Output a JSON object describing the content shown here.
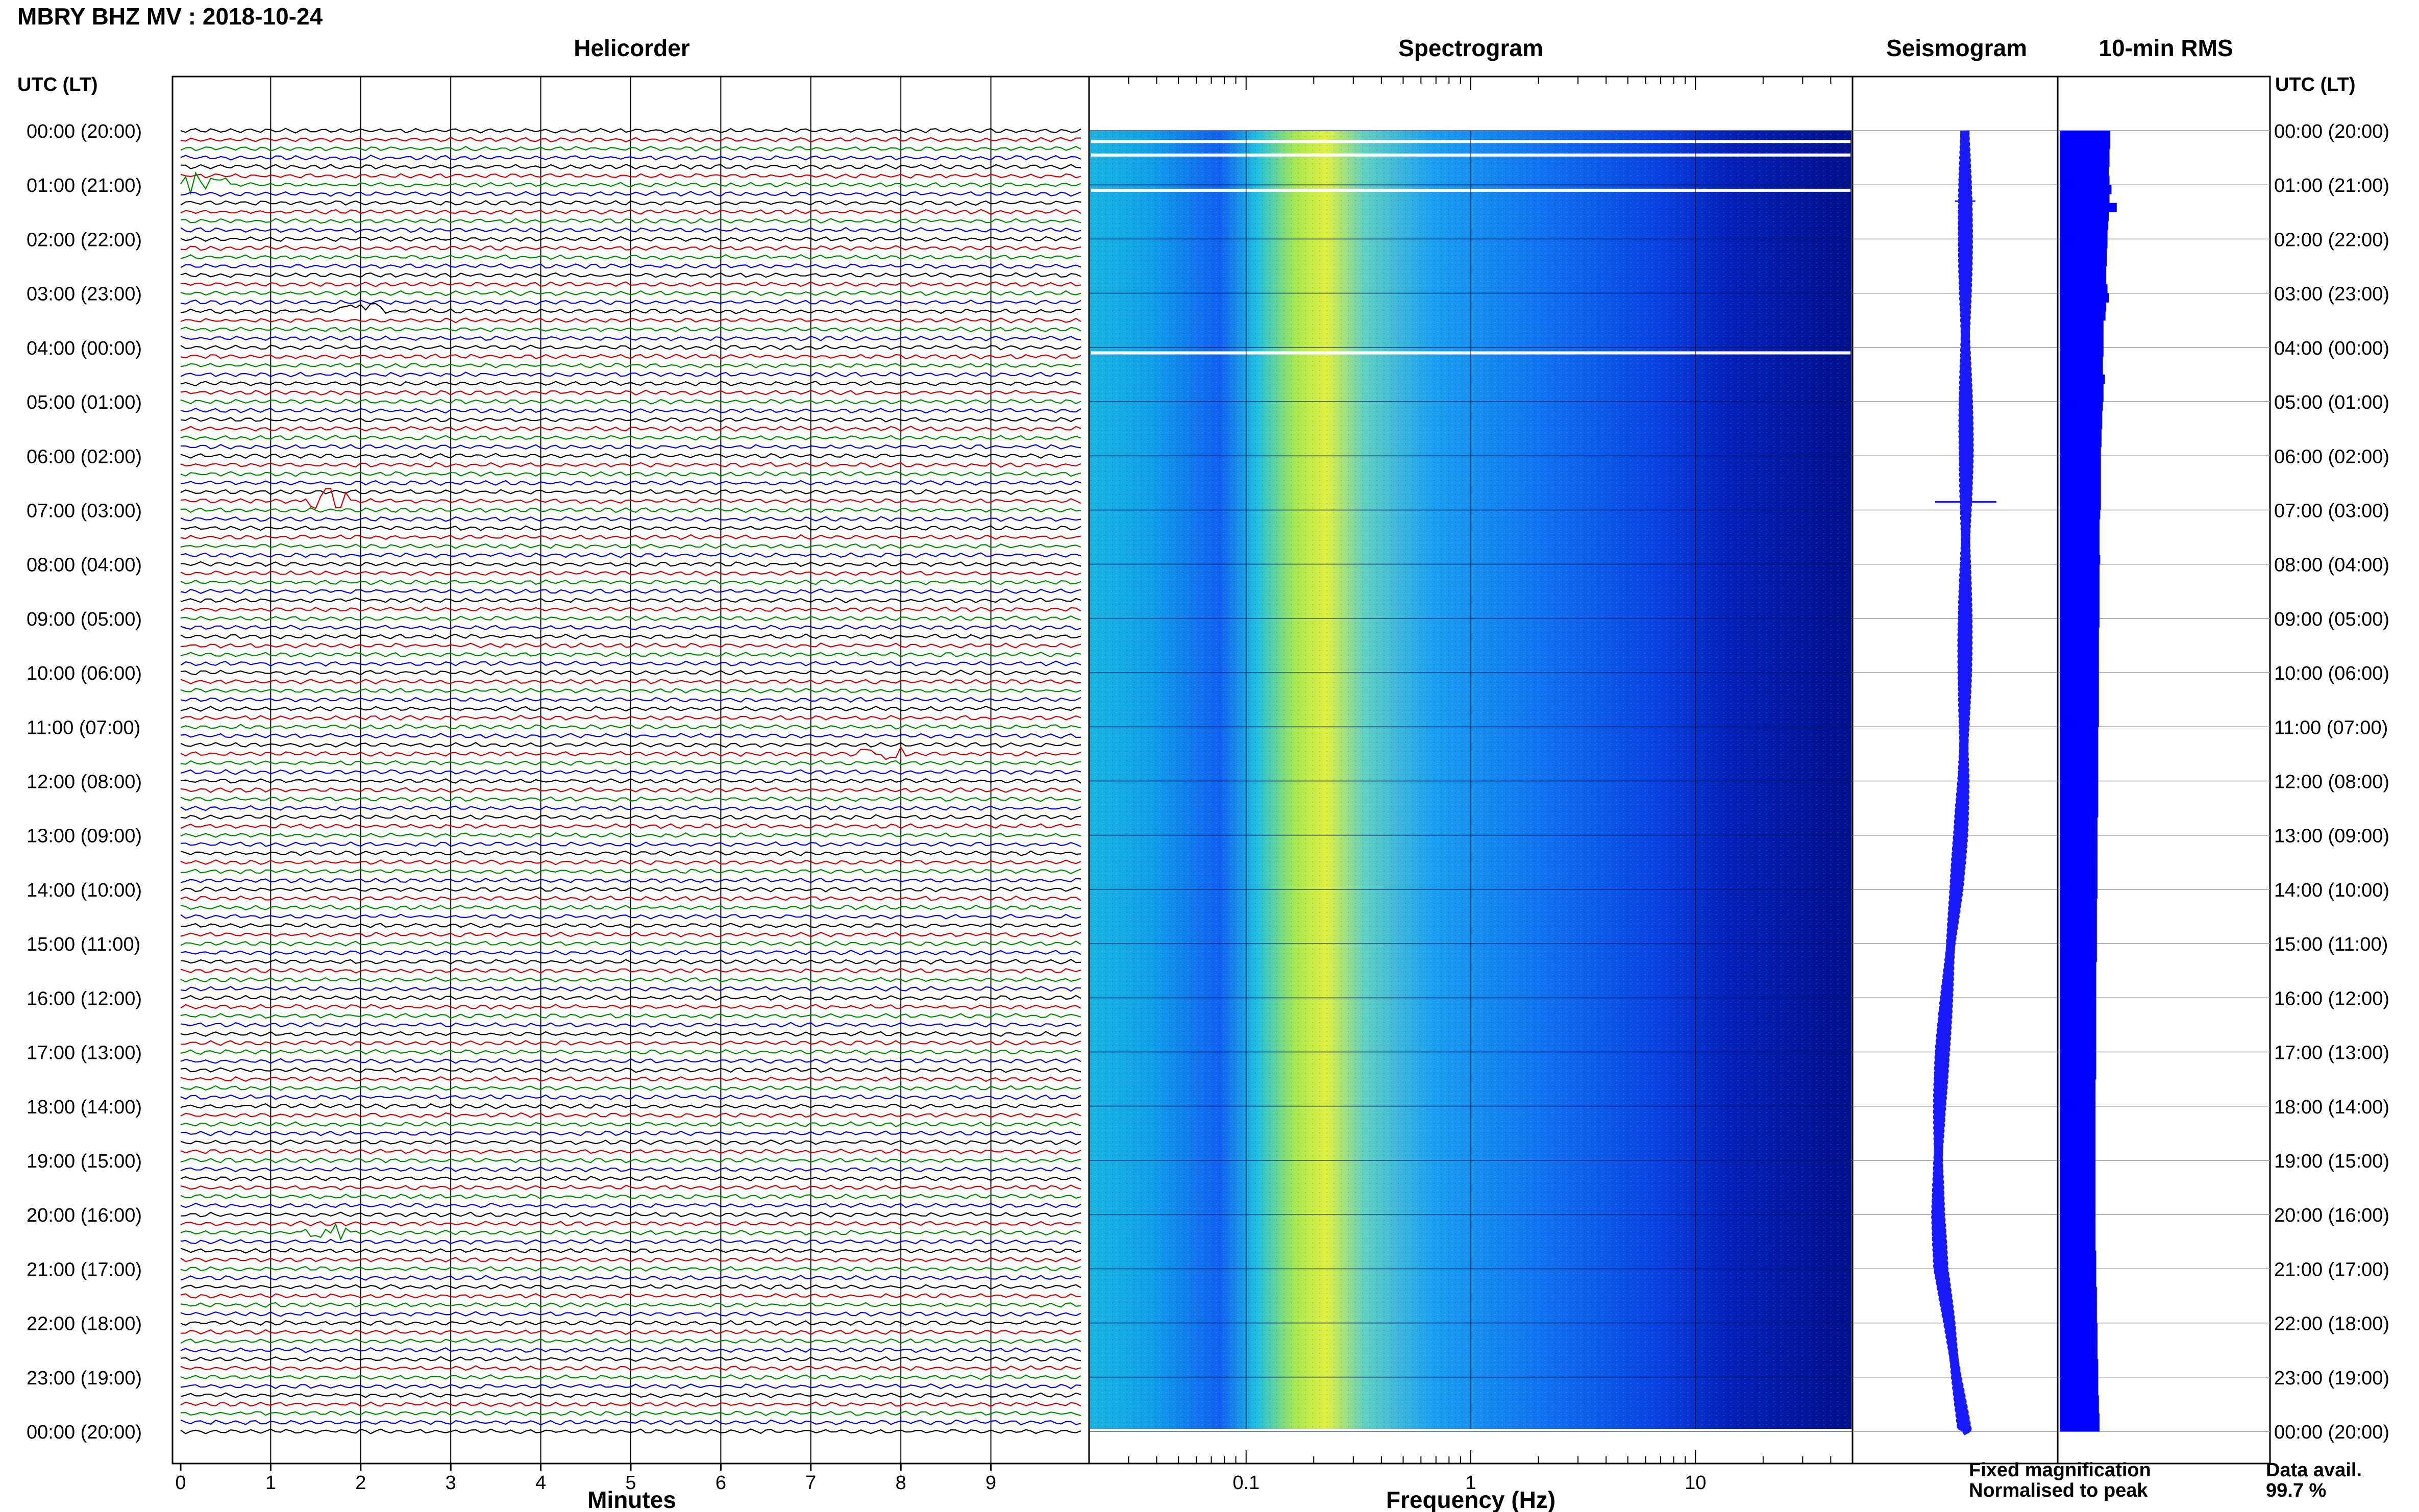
{
  "header": {
    "title": "MBRY BHZ MV : 2018-10-24"
  },
  "row_header": {
    "left": "UTC (LT)",
    "right": "UTC (LT)"
  },
  "panels": {
    "helicorder": "Helicorder",
    "spectrogram": "Spectrogram",
    "seismogram": "Seismogram",
    "rms": "10-min RMS"
  },
  "footer": {
    "fixed_magnification": "Fixed magnification",
    "normalised_to_peak": "Normalised to peak",
    "data_avail_label": "Data avail.",
    "data_avail_value": "99.7 %"
  },
  "colors": {
    "fixed_magnification": "#1a1aff",
    "normalised_to_peak": "#ff1a1a",
    "trace_colors": [
      "#000000",
      "#cc0000",
      "#008800",
      "#0000dd"
    ],
    "spectrogram_low": "#00008b",
    "spectrogram_high": "#e8f040",
    "rms_bar": "#0000ff"
  },
  "chart_data": [
    {
      "type": "line",
      "name": "helicorder",
      "xlabel": "Minutes",
      "x_ticks": [
        "0",
        "1",
        "2",
        "3",
        "4",
        "5",
        "6",
        "7",
        "8",
        "9"
      ],
      "xlim": [
        0,
        10
      ],
      "rows_per_hour": 6,
      "hours": 24,
      "row_labels": [
        "00:00 (20:00)",
        "01:00 (21:00)",
        "02:00 (22:00)",
        "03:00 (23:00)",
        "04:00 (00:00)",
        "05:00 (01:00)",
        "06:00 (02:00)",
        "07:00 (03:00)",
        "08:00 (04:00)",
        "09:00 (05:00)",
        "10:00 (06:00)",
        "11:00 (07:00)",
        "12:00 (08:00)",
        "13:00 (09:00)",
        "14:00 (10:00)",
        "15:00 (11:00)",
        "16:00 (12:00)",
        "17:00 (13:00)",
        "18:00 (14:00)",
        "19:00 (15:00)",
        "20:00 (16:00)",
        "21:00 (17:00)",
        "22:00 (18:00)",
        "23:00 (19:00)",
        "00:00 (20:00)"
      ],
      "events": [
        {
          "hour": 1.0,
          "minute": 0.3,
          "amp": 3
        },
        {
          "hour": 3.33,
          "minute": 2.0,
          "amp": 2
        },
        {
          "hour": 6.83,
          "minute": 1.6,
          "amp": 4
        },
        {
          "hour": 11.5,
          "minute": 7.8,
          "amp": 2
        },
        {
          "hour": 20.33,
          "minute": 1.6,
          "amp": 2
        }
      ]
    },
    {
      "type": "heatmap",
      "name": "spectrogram",
      "xlabel": "Frequency (Hz)",
      "x_scale": "log",
      "xlim": [
        0.02,
        50
      ],
      "x_ticks": [
        {
          "value": 0.1,
          "label": "0.1"
        },
        {
          "value": 1,
          "label": "1"
        },
        {
          "value": 10,
          "label": "10"
        }
      ],
      "peak_frequency_hz": 0.25,
      "high_frequency_rolloff_hz": 20
    },
    {
      "type": "line",
      "name": "seismogram",
      "description_values": "long-period drift by hour",
      "hours": [
        0,
        2,
        4,
        6,
        8,
        10,
        12,
        13,
        14,
        15,
        16,
        17,
        18,
        19,
        20,
        21,
        22,
        23,
        24
      ],
      "offset": [
        0.0,
        0.02,
        0.02,
        0.05,
        0.02,
        0.0,
        -0.05,
        -0.15,
        -0.3,
        -0.5,
        -0.65,
        -0.8,
        -0.9,
        -0.95,
        -0.95,
        -0.85,
        -0.55,
        -0.3,
        0.0
      ]
    },
    {
      "type": "bar",
      "name": "rms",
      "orientation": "horizontal",
      "interval_minutes": 10,
      "values": [
        0.76,
        0.76,
        0.75,
        0.75,
        0.74,
        0.75,
        0.78,
        0.75,
        0.86,
        0.74,
        0.73,
        0.72,
        0.72,
        0.71,
        0.71,
        0.7,
        0.7,
        0.72,
        0.74,
        0.7,
        0.69,
        0.66,
        0.66,
        0.66,
        0.66,
        0.65,
        0.65,
        0.68,
        0.66,
        0.66,
        0.65,
        0.64,
        0.64,
        0.63,
        0.63,
        0.62,
        0.62,
        0.62,
        0.62,
        0.62,
        0.62,
        0.62,
        0.61,
        0.6,
        0.6,
        0.6,
        0.6,
        0.61,
        0.6,
        0.6,
        0.6,
        0.6,
        0.6,
        0.6,
        0.6,
        0.59,
        0.59,
        0.59,
        0.59,
        0.59,
        0.59,
        0.59,
        0.59,
        0.59,
        0.59,
        0.59,
        0.58,
        0.58,
        0.58,
        0.58,
        0.58,
        0.58,
        0.58,
        0.58,
        0.58,
        0.58,
        0.57,
        0.57,
        0.57,
        0.57,
        0.57,
        0.57,
        0.57,
        0.57,
        0.57,
        0.56,
        0.56,
        0.56,
        0.56,
        0.56,
        0.56,
        0.56,
        0.55,
        0.55,
        0.55,
        0.55,
        0.55,
        0.55,
        0.55,
        0.55,
        0.55,
        0.55,
        0.55,
        0.55,
        0.55,
        0.54,
        0.54,
        0.54,
        0.54,
        0.54,
        0.54,
        0.54,
        0.54,
        0.54,
        0.54,
        0.54,
        0.54,
        0.54,
        0.54,
        0.54,
        0.54,
        0.54,
        0.54,
        0.54,
        0.55,
        0.55,
        0.55,
        0.55,
        0.56,
        0.56,
        0.56,
        0.56,
        0.57,
        0.57,
        0.57,
        0.57,
        0.58,
        0.58,
        0.58,
        0.58,
        0.59,
        0.59,
        0.6,
        0.6
      ]
    }
  ]
}
